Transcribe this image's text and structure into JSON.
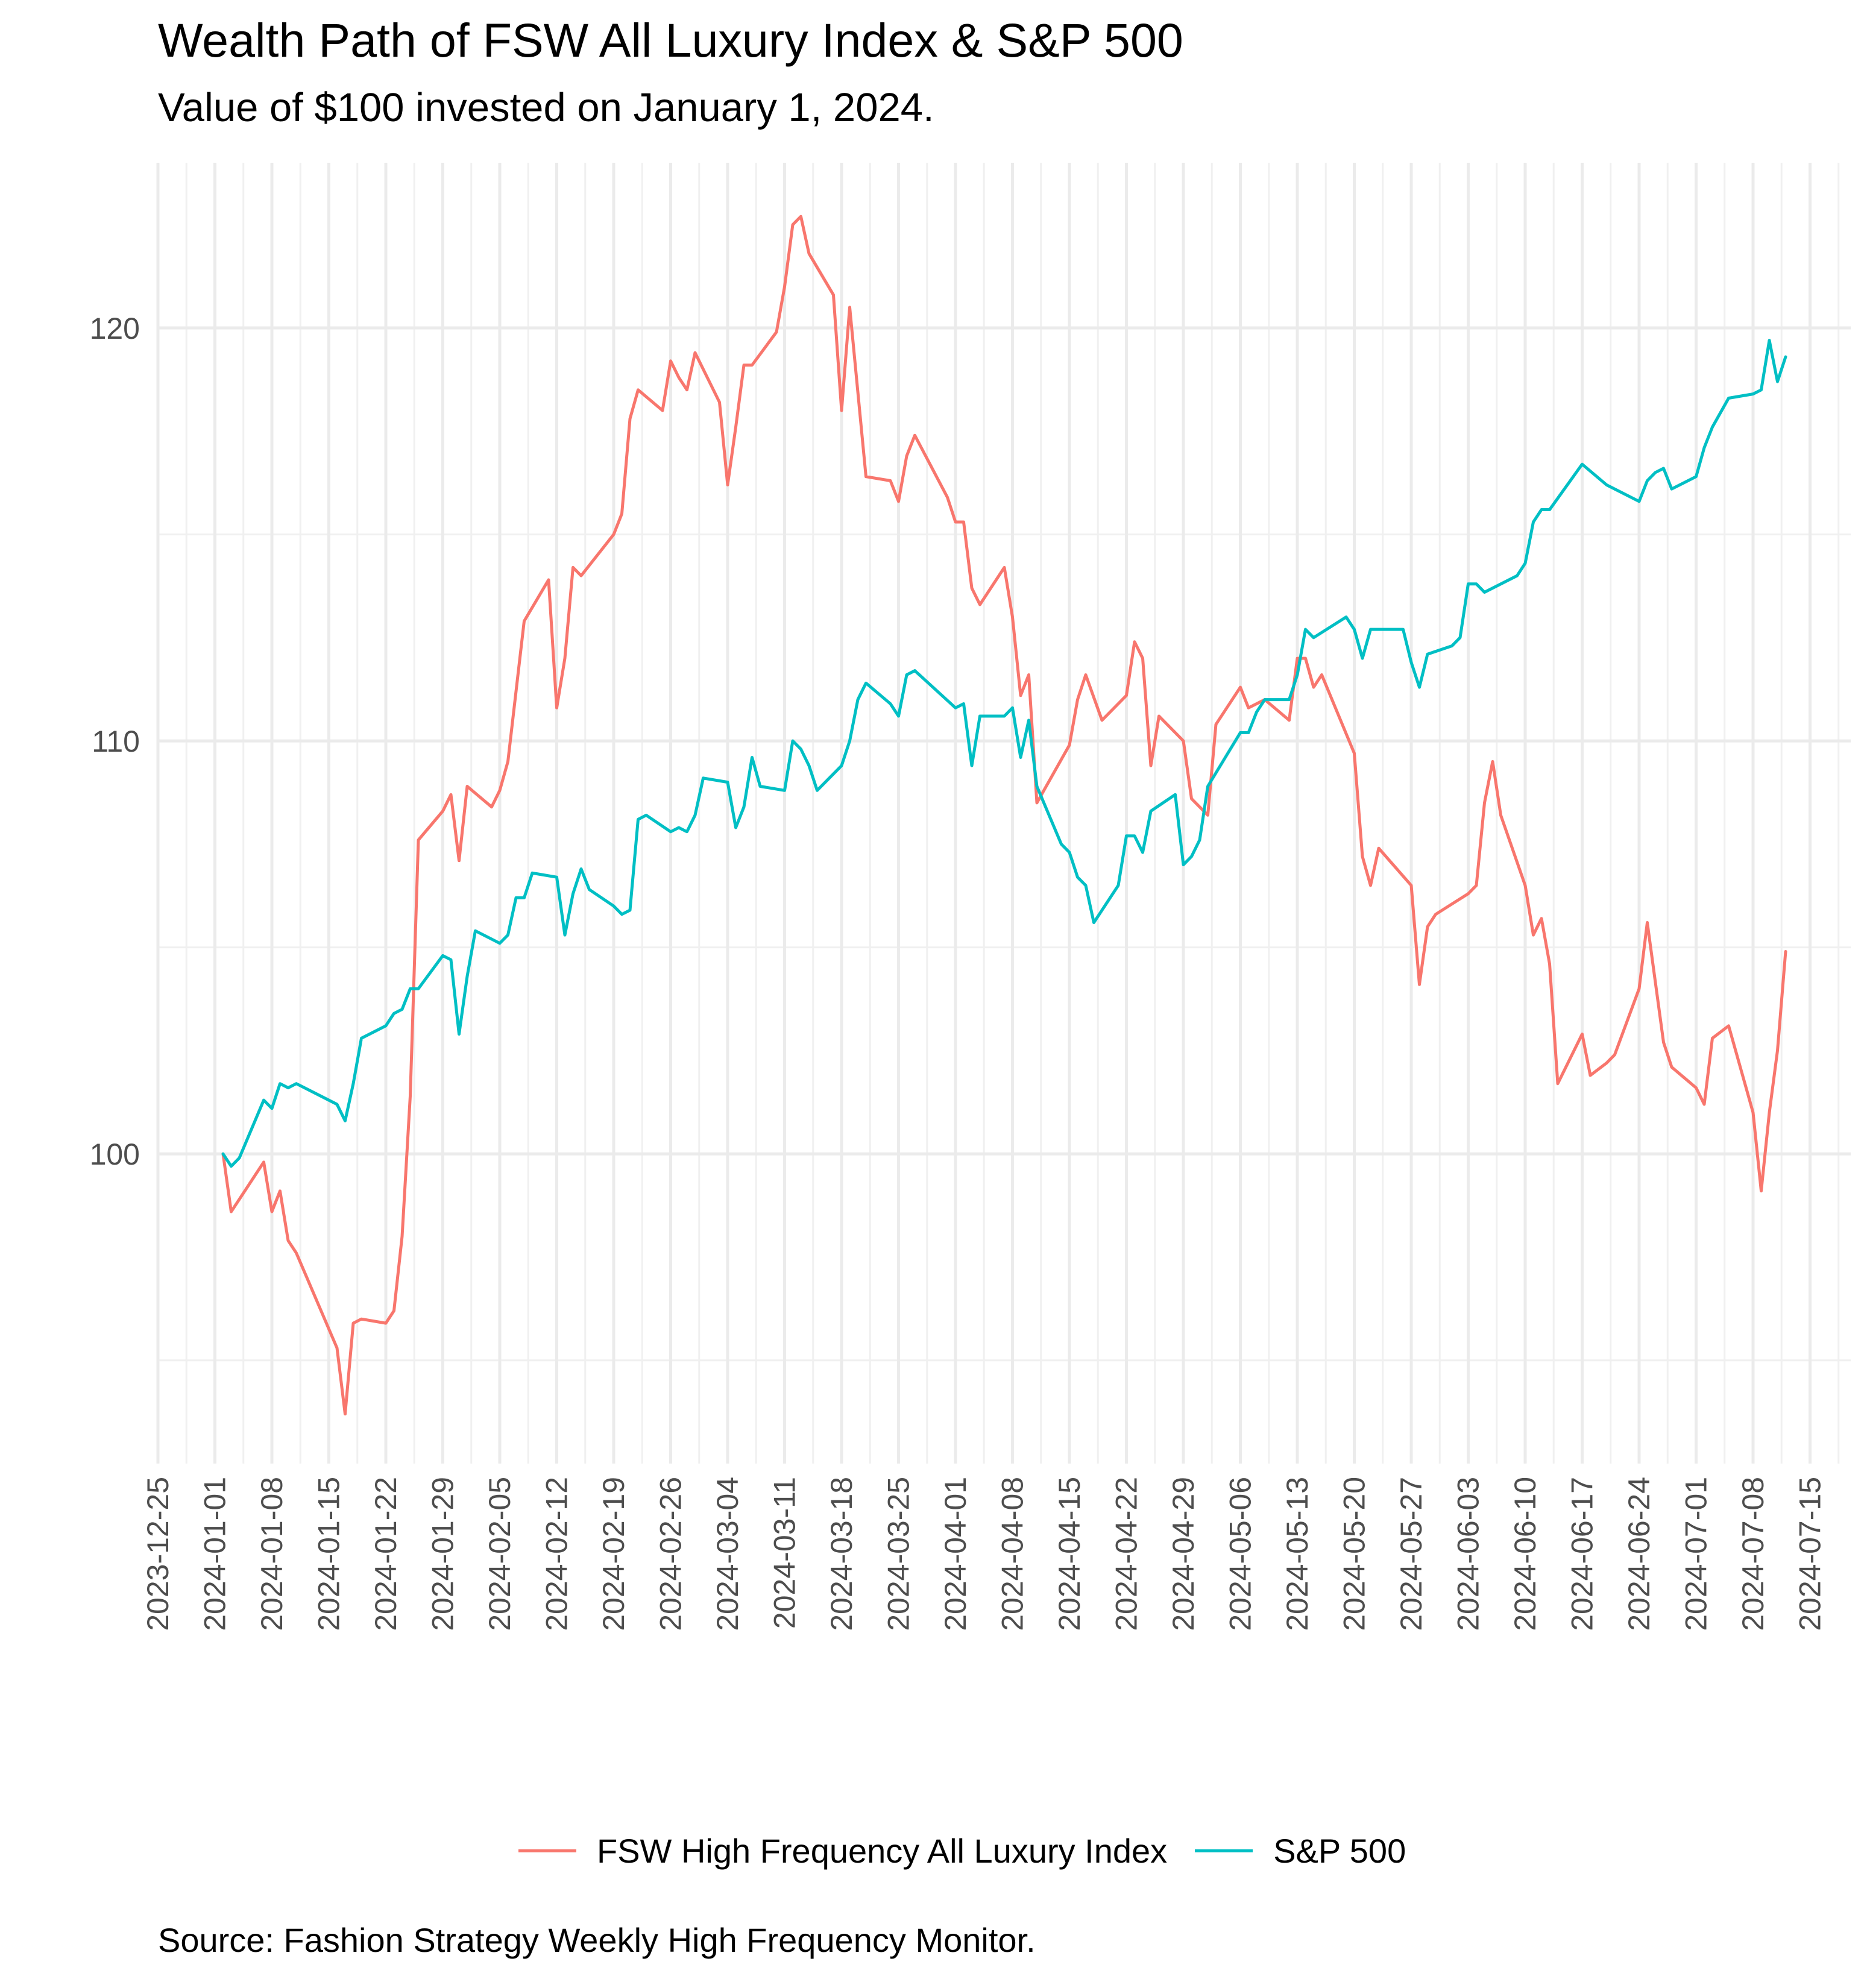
{
  "title": "Wealth Path of FSW All Luxury Index & S&P 500",
  "subtitle": "Value of $100 invested on January 1, 2024.",
  "caption": "Source: Fashion Strategy Weekly High Frequency Monitor.",
  "legend": [
    {
      "name": "FSW High Frequency All Luxury Index",
      "color": "#F8766D"
    },
    {
      "name": "S&P 500",
      "color": "#00BFC4"
    }
  ],
  "chart_data": {
    "type": "line",
    "title": "Wealth Path of FSW All Luxury Index & S&P 500",
    "subtitle": "Value of $100 invested on January 1, 2024.",
    "xlabel": "",
    "ylabel": "",
    "xlim": [
      "2023-12-25",
      "2024-07-20"
    ],
    "ylim": [
      92.5,
      124
    ],
    "x_ticks": [
      "2023-12-25",
      "2024-01-01",
      "2024-01-08",
      "2024-01-15",
      "2024-01-22",
      "2024-01-29",
      "2024-02-05",
      "2024-02-12",
      "2024-02-19",
      "2024-02-26",
      "2024-03-04",
      "2024-03-11",
      "2024-03-18",
      "2024-03-25",
      "2024-04-01",
      "2024-04-08",
      "2024-04-15",
      "2024-04-22",
      "2024-04-29",
      "2024-05-06",
      "2024-05-13",
      "2024-05-20",
      "2024-05-27",
      "2024-06-03",
      "2024-06-10",
      "2024-06-17",
      "2024-06-24",
      "2024-07-01",
      "2024-07-08",
      "2024-07-15"
    ],
    "y_ticks": [
      100,
      110,
      120
    ],
    "grid": true,
    "legend_position": "bottom",
    "series": [
      {
        "name": "FSW High Frequency All Luxury Index",
        "color": "#F8766D",
        "points": [
          [
            "2024-01-02",
            100.0
          ],
          [
            "2024-01-03",
            98.6
          ],
          [
            "2024-01-07",
            99.8
          ],
          [
            "2024-01-08",
            98.6
          ],
          [
            "2024-01-09",
            99.1
          ],
          [
            "2024-01-10",
            97.9
          ],
          [
            "2024-01-11",
            97.6
          ],
          [
            "2024-01-16",
            95.3
          ],
          [
            "2024-01-17",
            93.7
          ],
          [
            "2024-01-18",
            95.9
          ],
          [
            "2024-01-19",
            96.0
          ],
          [
            "2024-01-22",
            95.9
          ],
          [
            "2024-01-23",
            96.2
          ],
          [
            "2024-01-24",
            98.0
          ],
          [
            "2024-01-25",
            101.4
          ],
          [
            "2024-01-26",
            107.6
          ],
          [
            "2024-01-29",
            108.3
          ],
          [
            "2024-01-30",
            108.7
          ],
          [
            "2024-01-31",
            107.1
          ],
          [
            "2024-02-01",
            108.9
          ],
          [
            "2024-02-04",
            108.4
          ],
          [
            "2024-02-05",
            108.8
          ],
          [
            "2024-02-06",
            109.5
          ],
          [
            "2024-02-07",
            111.2
          ],
          [
            "2024-02-08",
            112.9
          ],
          [
            "2024-02-11",
            113.9
          ],
          [
            "2024-02-12",
            110.8
          ],
          [
            "2024-02-13",
            112.0
          ],
          [
            "2024-02-14",
            114.2
          ],
          [
            "2024-02-15",
            114.0
          ],
          [
            "2024-02-19",
            115.0
          ],
          [
            "2024-02-20",
            115.5
          ],
          [
            "2024-02-21",
            117.8
          ],
          [
            "2024-02-22",
            118.5
          ],
          [
            "2024-02-25",
            118.0
          ],
          [
            "2024-02-26",
            119.2
          ],
          [
            "2024-02-27",
            118.8
          ],
          [
            "2024-02-28",
            118.5
          ],
          [
            "2024-02-29",
            119.4
          ],
          [
            "2024-03-03",
            118.2
          ],
          [
            "2024-03-04",
            116.2
          ],
          [
            "2024-03-05",
            117.6
          ],
          [
            "2024-03-06",
            119.1
          ],
          [
            "2024-03-07",
            119.1
          ],
          [
            "2024-03-10",
            119.9
          ],
          [
            "2024-03-11",
            121.0
          ],
          [
            "2024-03-12",
            122.5
          ],
          [
            "2024-03-13",
            122.7
          ],
          [
            "2024-03-14",
            121.8
          ],
          [
            "2024-03-17",
            120.8
          ],
          [
            "2024-03-18",
            118.0
          ],
          [
            "2024-03-19",
            120.5
          ],
          [
            "2024-03-21",
            116.4
          ],
          [
            "2024-03-24",
            116.3
          ],
          [
            "2024-03-25",
            115.8
          ],
          [
            "2024-03-26",
            116.9
          ],
          [
            "2024-03-27",
            117.4
          ],
          [
            "2024-03-31",
            115.9
          ],
          [
            "2024-04-01",
            115.3
          ],
          [
            "2024-04-02",
            115.3
          ],
          [
            "2024-04-03",
            113.7
          ],
          [
            "2024-04-04",
            113.3
          ],
          [
            "2024-04-07",
            114.2
          ],
          [
            "2024-04-08",
            113.0
          ],
          [
            "2024-04-09",
            111.1
          ],
          [
            "2024-04-10",
            111.6
          ],
          [
            "2024-04-11",
            108.5
          ],
          [
            "2024-04-15",
            109.9
          ],
          [
            "2024-04-16",
            111.0
          ],
          [
            "2024-04-17",
            111.6
          ],
          [
            "2024-04-19",
            110.5
          ],
          [
            "2024-04-22",
            111.1
          ],
          [
            "2024-04-23",
            112.4
          ],
          [
            "2024-04-24",
            112.0
          ],
          [
            "2024-04-25",
            109.4
          ],
          [
            "2024-04-26",
            110.6
          ],
          [
            "2024-04-29",
            110.0
          ],
          [
            "2024-04-30",
            108.6
          ],
          [
            "2024-05-02",
            108.2
          ],
          [
            "2024-05-03",
            110.4
          ],
          [
            "2024-05-06",
            111.3
          ],
          [
            "2024-05-07",
            110.8
          ],
          [
            "2024-05-08",
            110.9
          ],
          [
            "2024-05-09",
            111.0
          ],
          [
            "2024-05-12",
            110.5
          ],
          [
            "2024-05-13",
            112.0
          ],
          [
            "2024-05-14",
            112.0
          ],
          [
            "2024-05-15",
            111.3
          ],
          [
            "2024-05-16",
            111.6
          ],
          [
            "2024-05-20",
            109.7
          ],
          [
            "2024-05-21",
            107.2
          ],
          [
            "2024-05-22",
            106.5
          ],
          [
            "2024-05-23",
            107.4
          ],
          [
            "2024-05-27",
            106.5
          ],
          [
            "2024-05-28",
            104.1
          ],
          [
            "2024-05-29",
            105.5
          ],
          [
            "2024-05-30",
            105.8
          ],
          [
            "2024-06-03",
            106.3
          ],
          [
            "2024-06-04",
            106.5
          ],
          [
            "2024-06-05",
            108.5
          ],
          [
            "2024-06-06",
            109.5
          ],
          [
            "2024-06-07",
            108.2
          ],
          [
            "2024-06-10",
            106.5
          ],
          [
            "2024-06-11",
            105.3
          ],
          [
            "2024-06-12",
            105.7
          ],
          [
            "2024-06-13",
            104.6
          ],
          [
            "2024-06-14",
            101.7
          ],
          [
            "2024-06-17",
            102.9
          ],
          [
            "2024-06-18",
            101.9
          ],
          [
            "2024-06-20",
            102.2
          ],
          [
            "2024-06-21",
            102.4
          ],
          [
            "2024-06-24",
            104.0
          ],
          [
            "2024-06-25",
            105.6
          ],
          [
            "2024-06-27",
            102.7
          ],
          [
            "2024-06-28",
            102.1
          ],
          [
            "2024-07-01",
            101.6
          ],
          [
            "2024-07-02",
            101.2
          ],
          [
            "2024-07-03",
            102.8
          ],
          [
            "2024-07-05",
            103.1
          ],
          [
            "2024-07-08",
            101.0
          ],
          [
            "2024-07-09",
            99.1
          ],
          [
            "2024-07-10",
            101.0
          ],
          [
            "2024-07-11",
            102.5
          ],
          [
            "2024-07-12",
            104.9
          ]
        ]
      },
      {
        "name": "S&P 500",
        "color": "#00BFC4",
        "points": [
          [
            "2024-01-02",
            100.0
          ],
          [
            "2024-01-03",
            99.7
          ],
          [
            "2024-01-04",
            99.9
          ],
          [
            "2024-01-07",
            101.3
          ],
          [
            "2024-01-08",
            101.1
          ],
          [
            "2024-01-09",
            101.7
          ],
          [
            "2024-01-10",
            101.6
          ],
          [
            "2024-01-11",
            101.7
          ],
          [
            "2024-01-15",
            101.3
          ],
          [
            "2024-01-16",
            101.2
          ],
          [
            "2024-01-17",
            100.8
          ],
          [
            "2024-01-18",
            101.7
          ],
          [
            "2024-01-19",
            102.8
          ],
          [
            "2024-01-22",
            103.1
          ],
          [
            "2024-01-23",
            103.4
          ],
          [
            "2024-01-24",
            103.5
          ],
          [
            "2024-01-25",
            104.0
          ],
          [
            "2024-01-26",
            104.0
          ],
          [
            "2024-01-29",
            104.8
          ],
          [
            "2024-01-30",
            104.7
          ],
          [
            "2024-01-31",
            102.9
          ],
          [
            "2024-02-01",
            104.3
          ],
          [
            "2024-02-02",
            105.4
          ],
          [
            "2024-02-05",
            105.1
          ],
          [
            "2024-02-06",
            105.3
          ],
          [
            "2024-02-07",
            106.2
          ],
          [
            "2024-02-08",
            106.2
          ],
          [
            "2024-02-09",
            106.8
          ],
          [
            "2024-02-12",
            106.7
          ],
          [
            "2024-02-13",
            105.3
          ],
          [
            "2024-02-14",
            106.3
          ],
          [
            "2024-02-15",
            106.9
          ],
          [
            "2024-02-16",
            106.4
          ],
          [
            "2024-02-19",
            106.0
          ],
          [
            "2024-02-20",
            105.8
          ],
          [
            "2024-02-21",
            105.9
          ],
          [
            "2024-02-22",
            108.1
          ],
          [
            "2024-02-23",
            108.2
          ],
          [
            "2024-02-26",
            107.8
          ],
          [
            "2024-02-27",
            107.9
          ],
          [
            "2024-02-28",
            107.8
          ],
          [
            "2024-02-29",
            108.2
          ],
          [
            "2024-03-01",
            109.1
          ],
          [
            "2024-03-04",
            109.0
          ],
          [
            "2024-03-05",
            107.9
          ],
          [
            "2024-03-06",
            108.4
          ],
          [
            "2024-03-07",
            109.6
          ],
          [
            "2024-03-08",
            108.9
          ],
          [
            "2024-03-11",
            108.8
          ],
          [
            "2024-03-12",
            110.0
          ],
          [
            "2024-03-13",
            109.8
          ],
          [
            "2024-03-14",
            109.4
          ],
          [
            "2024-03-15",
            108.8
          ],
          [
            "2024-03-18",
            109.4
          ],
          [
            "2024-03-19",
            110.0
          ],
          [
            "2024-03-20",
            111.0
          ],
          [
            "2024-03-21",
            111.4
          ],
          [
            "2024-03-24",
            110.9
          ],
          [
            "2024-03-25",
            110.6
          ],
          [
            "2024-03-26",
            111.6
          ],
          [
            "2024-03-27",
            111.7
          ],
          [
            "2024-04-01",
            110.8
          ],
          [
            "2024-04-02",
            110.9
          ],
          [
            "2024-04-03",
            109.4
          ],
          [
            "2024-04-04",
            110.6
          ],
          [
            "2024-04-07",
            110.6
          ],
          [
            "2024-04-08",
            110.8
          ],
          [
            "2024-04-09",
            109.6
          ],
          [
            "2024-04-10",
            110.5
          ],
          [
            "2024-04-11",
            108.9
          ],
          [
            "2024-04-14",
            107.5
          ],
          [
            "2024-04-15",
            107.3
          ],
          [
            "2024-04-16",
            106.7
          ],
          [
            "2024-04-17",
            106.5
          ],
          [
            "2024-04-18",
            105.6
          ],
          [
            "2024-04-21",
            106.5
          ],
          [
            "2024-04-22",
            107.7
          ],
          [
            "2024-04-23",
            107.7
          ],
          [
            "2024-04-24",
            107.3
          ],
          [
            "2024-04-25",
            108.3
          ],
          [
            "2024-04-28",
            108.7
          ],
          [
            "2024-04-29",
            107.0
          ],
          [
            "2024-04-30",
            107.2
          ],
          [
            "2024-05-01",
            107.6
          ],
          [
            "2024-05-02",
            108.9
          ],
          [
            "2024-05-06",
            110.2
          ],
          [
            "2024-05-07",
            110.2
          ],
          [
            "2024-05-08",
            110.7
          ],
          [
            "2024-05-09",
            111.0
          ],
          [
            "2024-05-12",
            111.0
          ],
          [
            "2024-05-13",
            111.6
          ],
          [
            "2024-05-14",
            112.7
          ],
          [
            "2024-05-15",
            112.5
          ],
          [
            "2024-05-19",
            113.0
          ],
          [
            "2024-05-20",
            112.7
          ],
          [
            "2024-05-21",
            112.0
          ],
          [
            "2024-05-22",
            112.7
          ],
          [
            "2024-05-26",
            112.7
          ],
          [
            "2024-05-27",
            111.9
          ],
          [
            "2024-05-28",
            111.3
          ],
          [
            "2024-05-29",
            112.1
          ],
          [
            "2024-06-01",
            112.3
          ],
          [
            "2024-06-02",
            112.5
          ],
          [
            "2024-06-03",
            113.8
          ],
          [
            "2024-06-04",
            113.8
          ],
          [
            "2024-06-05",
            113.6
          ],
          [
            "2024-06-09",
            114.0
          ],
          [
            "2024-06-10",
            114.3
          ],
          [
            "2024-06-11",
            115.3
          ],
          [
            "2024-06-12",
            115.6
          ],
          [
            "2024-06-13",
            115.6
          ],
          [
            "2024-06-17",
            116.7
          ],
          [
            "2024-06-20",
            116.2
          ],
          [
            "2024-06-24",
            115.8
          ],
          [
            "2024-06-25",
            116.3
          ],
          [
            "2024-06-26",
            116.5
          ],
          [
            "2024-06-27",
            116.6
          ],
          [
            "2024-06-28",
            116.1
          ],
          [
            "2024-07-01",
            116.4
          ],
          [
            "2024-07-02",
            117.1
          ],
          [
            "2024-07-03",
            117.6
          ],
          [
            "2024-07-05",
            118.3
          ],
          [
            "2024-07-08",
            118.4
          ],
          [
            "2024-07-09",
            118.5
          ],
          [
            "2024-07-10",
            119.7
          ],
          [
            "2024-07-11",
            118.7
          ],
          [
            "2024-07-12",
            119.3
          ]
        ]
      }
    ]
  }
}
